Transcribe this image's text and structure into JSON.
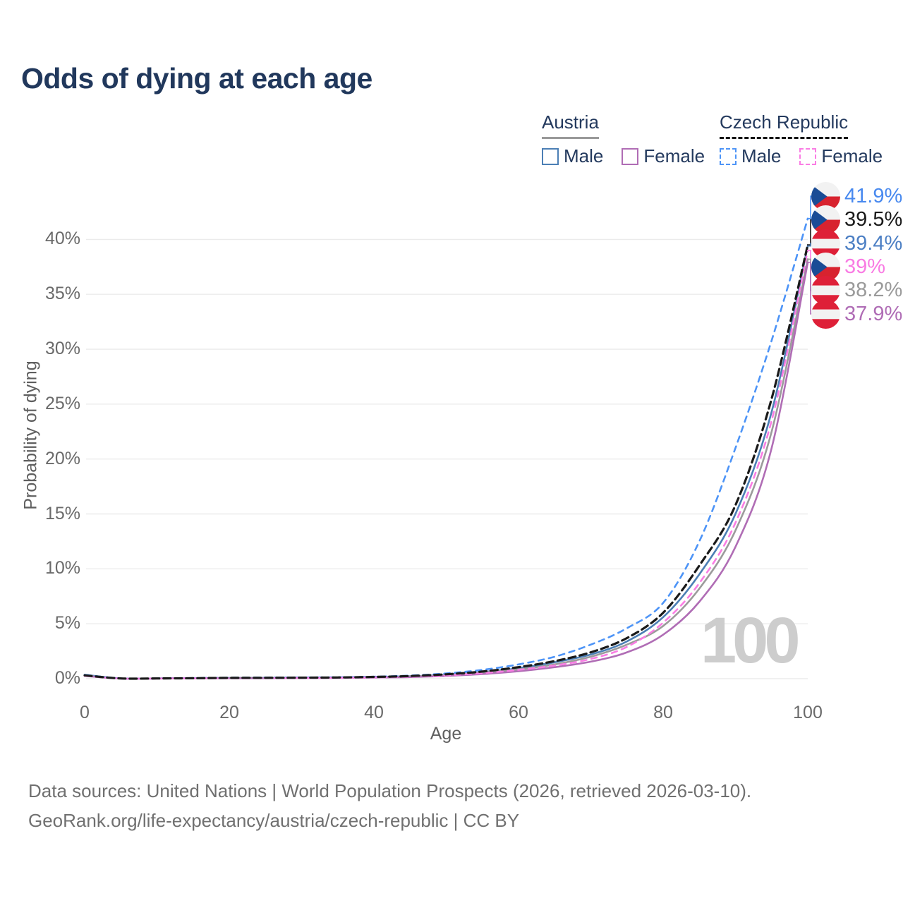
{
  "title": "Odds of dying at each age",
  "legend": {
    "groups": [
      {
        "label": "Austria",
        "line_style": "solid",
        "underline_color": "#999999",
        "items": [
          {
            "label": "Male",
            "color": "#4C7FB5"
          },
          {
            "label": "Female",
            "color": "#B06DB5"
          }
        ]
      },
      {
        "label": "Czech Republic",
        "line_style": "dashed",
        "underline_color": "#141414",
        "items": [
          {
            "label": "Male",
            "color": "#4D94F7"
          },
          {
            "label": "Female",
            "color": "#FA7DE4"
          }
        ]
      }
    ]
  },
  "y_axis": {
    "title": "Probability of dying",
    "tick_labels": [
      "0%",
      "5%",
      "10%",
      "15%",
      "20%",
      "25%",
      "30%",
      "35%",
      "40%"
    ],
    "tick_values": [
      0,
      5,
      10,
      15,
      20,
      25,
      30,
      35,
      40
    ]
  },
  "x_axis": {
    "title": "Age",
    "tick_labels": [
      "0",
      "20",
      "40",
      "60",
      "80",
      "100"
    ],
    "tick_values": [
      0,
      20,
      40,
      60,
      80,
      100
    ]
  },
  "watermark": "100",
  "end_labels": [
    {
      "flag": "czech",
      "text": "41.9%",
      "text_color": "#4889EF",
      "connector_color": "#4D94F7",
      "series": "Czech Republic Male"
    },
    {
      "flag": "czech",
      "text": "39.5%",
      "text_color": "#1a1a1a",
      "connector_color": "#1a1a1a",
      "series": "Czech Republic Both"
    },
    {
      "flag": "austria",
      "text": "39.4%",
      "text_color": "#4C7FC4",
      "connector_color": "#4C7FB5",
      "series": "Austria Male"
    },
    {
      "flag": "czech",
      "text": "39%",
      "text_color": "#F97BE3",
      "connector_color": "#FA7DE4",
      "series": "Czech Republic Female"
    },
    {
      "flag": "austria",
      "text": "38.2%",
      "text_color": "#9a9a9a",
      "connector_color": "#9B9B9B",
      "series": "Austria Both"
    },
    {
      "flag": "austria",
      "text": "37.9%",
      "text_color": "#AF6CB5",
      "connector_color": "#B06DB5",
      "series": "Austria Female"
    }
  ],
  "chart_data": {
    "type": "line",
    "title": "Odds of dying at each age",
    "xlabel": "Age",
    "ylabel": "Probability of dying",
    "xlim": [
      0,
      100
    ],
    "ylim": [
      0,
      44
    ],
    "grid": true,
    "legend_position": "top-right",
    "x": [
      0,
      5,
      10,
      15,
      20,
      25,
      30,
      35,
      40,
      45,
      50,
      55,
      60,
      65,
      70,
      75,
      80,
      85,
      90,
      95,
      100
    ],
    "unit": "percent",
    "series": [
      {
        "name": "Austria Male",
        "country": "Austria",
        "sex": "male",
        "color": "#4C7FB5",
        "dashed": false,
        "end_value": 39.4,
        "values": [
          0.35,
          0.02,
          0.02,
          0.04,
          0.07,
          0.08,
          0.09,
          0.11,
          0.15,
          0.22,
          0.36,
          0.6,
          0.95,
          1.5,
          2.2,
          3.4,
          5.6,
          9.5,
          15.0,
          24.3,
          39.4
        ]
      },
      {
        "name": "Austria Both",
        "country": "Austria",
        "sex": "both",
        "color": "#9B9B9B",
        "dashed": false,
        "end_value": 38.2,
        "values": [
          0.3,
          0.02,
          0.02,
          0.035,
          0.055,
          0.065,
          0.075,
          0.095,
          0.13,
          0.2,
          0.33,
          0.55,
          0.85,
          1.3,
          2.0,
          3.1,
          4.8,
          8.2,
          13.5,
          22.5,
          38.2
        ]
      },
      {
        "name": "Austria Female",
        "country": "Austria",
        "sex": "female",
        "color": "#B06DB5",
        "dashed": false,
        "end_value": 37.9,
        "values": [
          0.25,
          0.015,
          0.015,
          0.025,
          0.035,
          0.04,
          0.05,
          0.07,
          0.1,
          0.15,
          0.25,
          0.42,
          0.68,
          1.05,
          1.55,
          2.4,
          4.0,
          7.0,
          12.0,
          21.0,
          37.9
        ]
      },
      {
        "name": "Czech Republic Male",
        "country": "Czech Republic",
        "sex": "male",
        "color": "#4D94F7",
        "dashed": true,
        "end_value": 41.9,
        "values": [
          0.35,
          0.02,
          0.02,
          0.05,
          0.09,
          0.1,
          0.11,
          0.13,
          0.18,
          0.28,
          0.48,
          0.8,
          1.3,
          2.0,
          3.1,
          4.6,
          6.9,
          12.5,
          21.0,
          30.8,
          41.9
        ]
      },
      {
        "name": "Czech Republic Female",
        "country": "Czech Republic",
        "sex": "female",
        "color": "#FA7DE4",
        "dashed": true,
        "end_value": 39.0,
        "values": [
          0.25,
          0.015,
          0.015,
          0.03,
          0.04,
          0.05,
          0.06,
          0.08,
          0.12,
          0.18,
          0.3,
          0.5,
          0.8,
          1.2,
          1.8,
          2.9,
          5.1,
          8.7,
          14.2,
          23.5,
          39.0
        ]
      },
      {
        "name": "Czech Republic Both",
        "country": "Czech Republic",
        "sex": "both",
        "color": "#1a1a1a",
        "dashed": true,
        "end_value": 39.5,
        "values": [
          0.3,
          0.02,
          0.02,
          0.04,
          0.07,
          0.08,
          0.09,
          0.11,
          0.16,
          0.24,
          0.4,
          0.65,
          1.05,
          1.6,
          2.4,
          3.7,
          6.0,
          10.3,
          15.8,
          25.5,
          39.5
        ]
      }
    ]
  },
  "footer": {
    "line1": "Data sources: United Nations | World Population Prospects (2026, retrieved 2026-03-10).",
    "line2": "GeoRank.org/life-expectancy/austria/czech-republic | CC BY"
  }
}
